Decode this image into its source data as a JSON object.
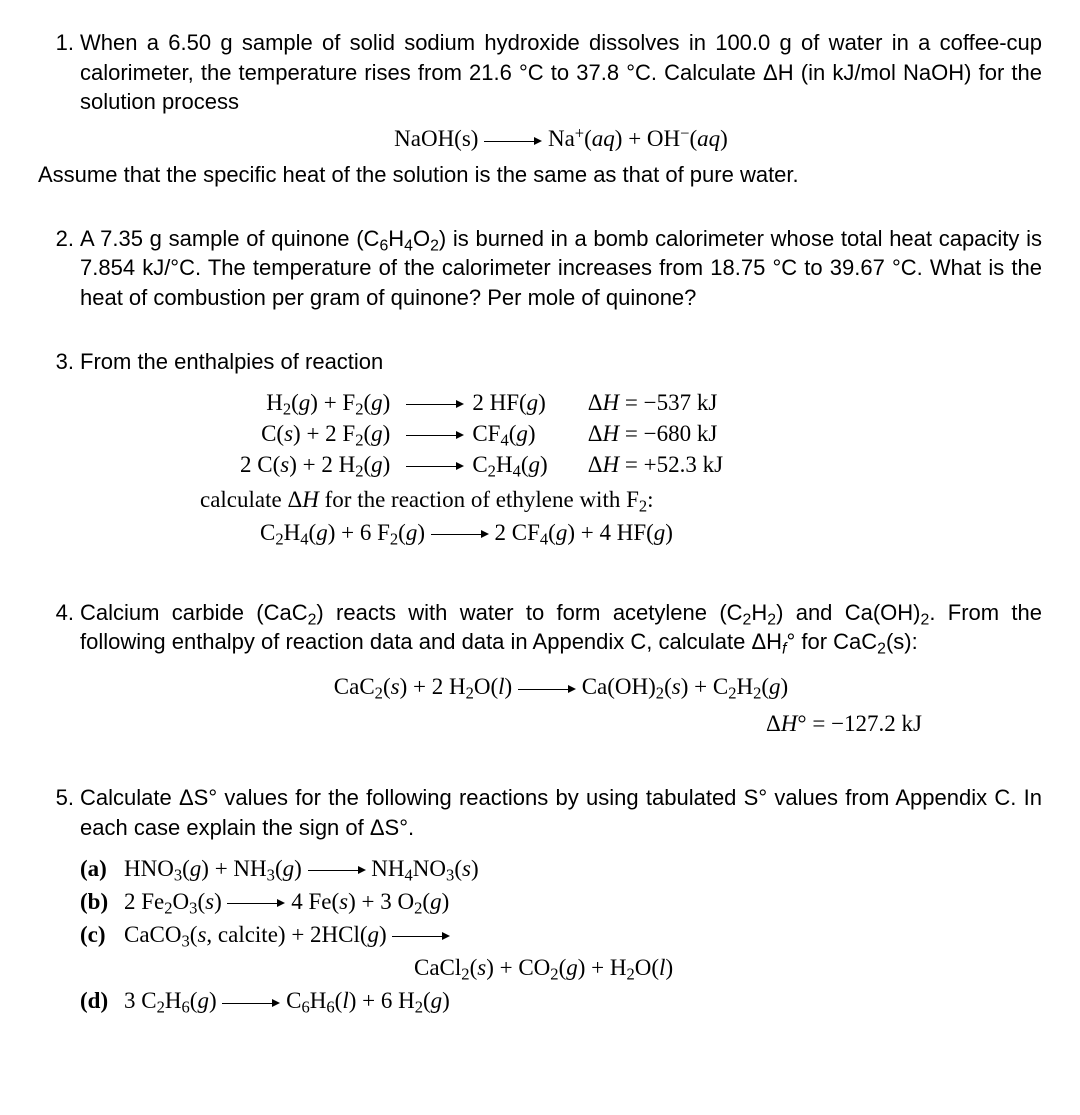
{
  "q1": {
    "num": "1.",
    "p1a": "When a 6.50 g sample of solid sodium hydroxide dissolves in 100.0 g of water in a coffee-cup calorimeter, the temperature rises from 21.6 °C to 37.8 °C. Calculate ΔH (in kJ/mol NaOH) for the solution process",
    "eq_lhs": "NaOH(s)",
    "eq_rhs_html": "Na<sup>+</sup>(<span class='ital'>aq</span>) + OH<sup>−</sup>(<span class='ital'>aq</span>)",
    "p2": "Assume that the specific heat of the solution is the same as that of pure water."
  },
  "q2": {
    "num": "2.",
    "p_html": "A 7.35 g sample of quinone (C<sub>6</sub>H<sub>4</sub>O<sub>2</sub>) is burned in a bomb calorimeter whose total heat capacity is 7.854 kJ/°C. The temperature of the calorimeter increases from 18.75 °C to 39.67 °C. What is the heat of combustion per gram of quinone? Per mole of quinone?"
  },
  "q3": {
    "num": "3.",
    "intro": "From the enthalpies of reaction",
    "r1": {
      "l": "H<sub>2</sub>(<span class='ital'>g</span>) + F<sub>2</sub>(<span class='ital'>g</span>)",
      "r": "2 HF(<span class='ital'>g</span>)",
      "h": "Δ<span class='ital'>H</span> = −537 kJ"
    },
    "r2": {
      "l": "C(<span class='ital'>s</span>) + 2 F<sub>2</sub>(<span class='ital'>g</span>)",
      "r": "CF<sub>4</sub>(<span class='ital'>g</span>)",
      "h": "Δ<span class='ital'>H</span> = −680 kJ"
    },
    "r3": {
      "l": "2 C(<span class='ital'>s</span>) + 2 H<sub>2</sub>(<span class='ital'>g</span>)",
      "r": "C<sub>2</sub>H<sub>4</sub>(<span class='ital'>g</span>)",
      "h": "Δ<span class='ital'>H</span> = +52.3 kJ"
    },
    "calc": "calculate Δ<span class='ital'>H</span> for the reaction of ethylene with F<sub>2</sub>:",
    "tgt_l": "C<sub>2</sub>H<sub>4</sub>(<span class='ital'>g</span>) + 6 F<sub>2</sub>(<span class='ital'>g</span>)",
    "tgt_r": "2 CF<sub>4</sub>(<span class='ital'>g</span>) + 4 HF(<span class='ital'>g</span>)"
  },
  "q4": {
    "num": "4.",
    "p_html": "Calcium carbide (CaC<sub>2</sub>) reacts with water to form acetylene (C<sub>2</sub>H<sub>2</sub>) and Ca(OH)<sub>2</sub>. From the following enthalpy of reaction data and data in Appendix C, calculate ΔH<sub><span class='ital'>f</span></sub>° for CaC<sub>2</sub>(s):",
    "eq_l": "CaC<sub>2</sub>(<span class='ital'>s</span>) + 2 H<sub>2</sub>O(<span class='ital'>l</span>)",
    "eq_r": "Ca(OH)<sub>2</sub>(<span class='ital'>s</span>) + C<sub>2</sub>H<sub>2</sub>(<span class='ital'>g</span>)",
    "dh": "Δ<span class='ital'>H</span>° = −127.2 kJ"
  },
  "q5": {
    "num": "5.",
    "p_html": "Calculate ΔS° values for the following reactions by using tabulated S° values from Appendix C. In each case explain the sign of ΔS°.",
    "a_lbl": "(a)",
    "a": "HNO<sub>3</sub>(<span class='ital'>g</span>) + NH<sub>3</sub>(<span class='ital'>g</span>) <span class='arrow'></span> NH<sub>4</sub>NO<sub>3</sub>(<span class='ital'>s</span>)",
    "b_lbl": "(b)",
    "b": "2 Fe<sub>2</sub>O<sub>3</sub>(<span class='ital'>s</span>) <span class='arrow'></span> 4 Fe(<span class='ital'>s</span>) + 3 O<sub>2</sub>(<span class='ital'>g</span>)",
    "c_lbl": "(c)",
    "c1": "CaCO<sub>3</sub>(<span class='ital'>s</span>, calcite) + 2HCl(<span class='ital'>g</span>) <span class='arrow'></span>",
    "c2": "CaCl<sub>2</sub>(<span class='ital'>s</span>) + CO<sub>2</sub>(<span class='ital'>g</span>) + H<sub>2</sub>O(<span class='ital'>l</span>)",
    "d_lbl": "(d)",
    "d": "3 C<sub>2</sub>H<sub>6</sub>(<span class='ital'>g</span>) <span class='arrow'></span> C<sub>6</sub>H<sub>6</sub>(<span class='ital'>l</span>) + 6 H<sub>2</sub>(<span class='ital'>g</span>)"
  }
}
